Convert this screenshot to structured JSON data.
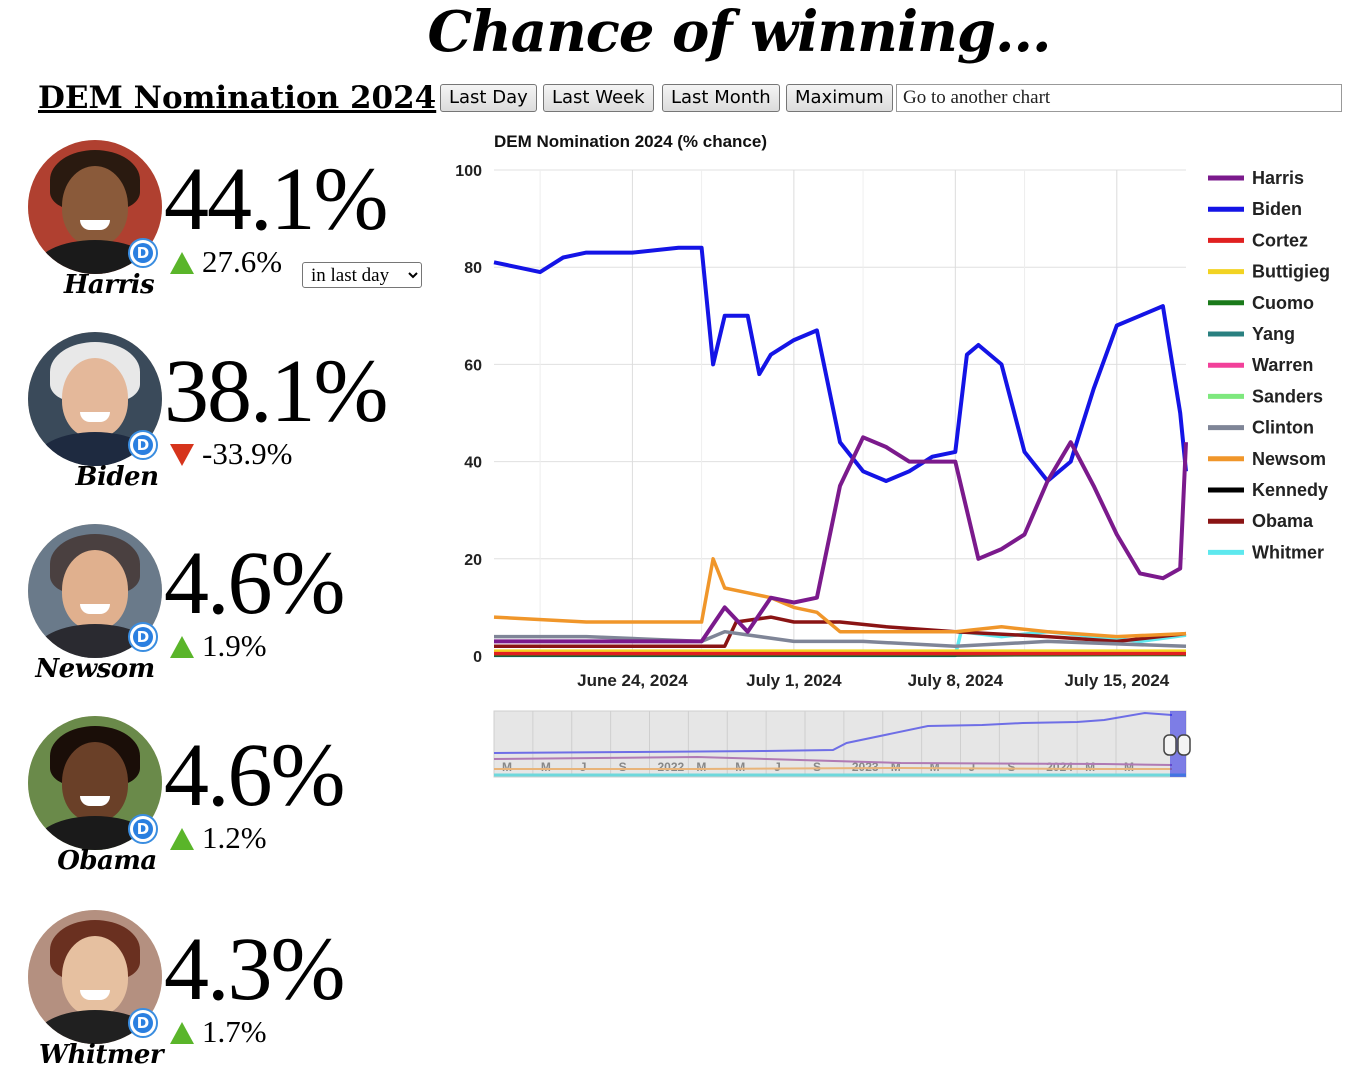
{
  "page": {
    "title": "Chance of winning...",
    "market_title": "DEM Nomination 2024"
  },
  "candidates": [
    {
      "name": "Harris",
      "pct": "44.1%",
      "change": "27.6%",
      "direction": "up",
      "party": "D",
      "photo": "harris-photo"
    },
    {
      "name": "Biden",
      "pct": "38.1%",
      "change": "-33.9%",
      "direction": "down",
      "party": "D",
      "photo": "biden-photo"
    },
    {
      "name": "Newsom",
      "pct": "4.6%",
      "change": "1.9%",
      "direction": "up",
      "party": "D",
      "photo": "newsom-photo"
    },
    {
      "name": "Obama",
      "pct": "4.6%",
      "change": "1.2%",
      "direction": "up",
      "party": "D",
      "photo": "obama-photo"
    },
    {
      "name": "Whitmer",
      "pct": "4.3%",
      "change": "1.7%",
      "direction": "up",
      "party": "D",
      "photo": "whitmer-photo"
    }
  ],
  "period_select": {
    "selected": "in last day"
  },
  "controls": {
    "buttons": [
      "Last Day",
      "Last Week",
      "Last Month",
      "Maximum"
    ],
    "goto_placeholder": "Go to another chart"
  },
  "colors": {
    "up_arrow": "#5ab52a",
    "down_arrow": "#d6341c",
    "party_badge": "#2a7fe0"
  },
  "chart_data": {
    "type": "line",
    "title": "DEM Nomination 2024 (% chance)",
    "ylim": [
      0,
      100
    ],
    "y_ticks": [
      0,
      20,
      40,
      60,
      80,
      100
    ],
    "x_ticks": [
      "June 24, 2024",
      "July 1, 2024",
      "July 8, 2024",
      "July 15, 2024"
    ],
    "x_start": "2024-06-18",
    "x_end": "2024-07-18",
    "grid": true,
    "legend_position": "right",
    "series": [
      {
        "name": "Harris",
        "color": "#7b1a8c",
        "points": [
          [
            "2024-06-18",
            3
          ],
          [
            "2024-06-27",
            3
          ],
          [
            "2024-06-28",
            10
          ],
          [
            "2024-06-29",
            5
          ],
          [
            "2024-06-30",
            12
          ],
          [
            "2024-07-01",
            11
          ],
          [
            "2024-07-02",
            12
          ],
          [
            "2024-07-03",
            35
          ],
          [
            "2024-07-04",
            45
          ],
          [
            "2024-07-05",
            43
          ],
          [
            "2024-07-06",
            40
          ],
          [
            "2024-07-07",
            40
          ],
          [
            "2024-07-08",
            40
          ],
          [
            "2024-07-09",
            20
          ],
          [
            "2024-07-10",
            22
          ],
          [
            "2024-07-11",
            25
          ],
          [
            "2024-07-12",
            36
          ],
          [
            "2024-07-13",
            44
          ],
          [
            "2024-07-14",
            35
          ],
          [
            "2024-07-15",
            25
          ],
          [
            "2024-07-16",
            17
          ],
          [
            "2024-07-17",
            16
          ],
          [
            "2024-07-17T18:00",
            18
          ],
          [
            "2024-07-18",
            44
          ]
        ]
      },
      {
        "name": "Biden",
        "color": "#1414e6",
        "points": [
          [
            "2024-06-18",
            81
          ],
          [
            "2024-06-19",
            80
          ],
          [
            "2024-06-20",
            79
          ],
          [
            "2024-06-21",
            82
          ],
          [
            "2024-06-22",
            83
          ],
          [
            "2024-06-24",
            83
          ],
          [
            "2024-06-26",
            84
          ],
          [
            "2024-06-27",
            84
          ],
          [
            "2024-06-27T12:00",
            60
          ],
          [
            "2024-06-28",
            70
          ],
          [
            "2024-06-29",
            70
          ],
          [
            "2024-06-29T12:00",
            58
          ],
          [
            "2024-06-30",
            62
          ],
          [
            "2024-07-01",
            65
          ],
          [
            "2024-07-02",
            67
          ],
          [
            "2024-07-03",
            44
          ],
          [
            "2024-07-04",
            38
          ],
          [
            "2024-07-05",
            36
          ],
          [
            "2024-07-06",
            38
          ],
          [
            "2024-07-07",
            41
          ],
          [
            "2024-07-08",
            42
          ],
          [
            "2024-07-08T12:00",
            62
          ],
          [
            "2024-07-09",
            64
          ],
          [
            "2024-07-10",
            60
          ],
          [
            "2024-07-11",
            42
          ],
          [
            "2024-07-12",
            36
          ],
          [
            "2024-07-13",
            40
          ],
          [
            "2024-07-14",
            55
          ],
          [
            "2024-07-15",
            68
          ],
          [
            "2024-07-16",
            70
          ],
          [
            "2024-07-17",
            72
          ],
          [
            "2024-07-17T18:00",
            50
          ],
          [
            "2024-07-18",
            38
          ]
        ]
      },
      {
        "name": "Cortez",
        "color": "#e02020",
        "points": [
          [
            "2024-06-18",
            0.5
          ],
          [
            "2024-07-18",
            0.5
          ]
        ]
      },
      {
        "name": "Buttigieg",
        "color": "#f2d322",
        "points": [
          [
            "2024-06-18",
            1
          ],
          [
            "2024-07-18",
            1
          ]
        ]
      },
      {
        "name": "Cuomo",
        "color": "#1a7a1a",
        "points": [
          [
            "2024-06-18",
            0.3
          ],
          [
            "2024-07-18",
            0.3
          ]
        ]
      },
      {
        "name": "Yang",
        "color": "#2a8080",
        "points": [
          [
            "2024-06-18",
            0.4
          ],
          [
            "2024-07-18",
            0.4
          ]
        ]
      },
      {
        "name": "Warren",
        "color": "#f2409a",
        "points": [
          [
            "2024-06-18",
            0.6
          ],
          [
            "2024-07-18",
            0.6
          ]
        ]
      },
      {
        "name": "Sanders",
        "color": "#7ee87e",
        "points": [
          [
            "2024-06-18",
            0.8
          ],
          [
            "2024-07-18",
            0.8
          ]
        ]
      },
      {
        "name": "Clinton",
        "color": "#7f8597",
        "points": [
          [
            "2024-06-18",
            4
          ],
          [
            "2024-06-22",
            4
          ],
          [
            "2024-06-27",
            3
          ],
          [
            "2024-06-28",
            5
          ],
          [
            "2024-07-01",
            3
          ],
          [
            "2024-07-04",
            3
          ],
          [
            "2024-07-08",
            2
          ],
          [
            "2024-07-12",
            3
          ],
          [
            "2024-07-18",
            2
          ]
        ]
      },
      {
        "name": "Newsom",
        "color": "#f0962a",
        "points": [
          [
            "2024-06-18",
            8
          ],
          [
            "2024-06-22",
            7
          ],
          [
            "2024-06-27",
            7
          ],
          [
            "2024-06-27T12:00",
            20
          ],
          [
            "2024-06-28",
            14
          ],
          [
            "2024-06-29",
            13
          ],
          [
            "2024-06-30",
            12
          ],
          [
            "2024-07-01",
            10
          ],
          [
            "2024-07-02",
            9
          ],
          [
            "2024-07-03",
            5
          ],
          [
            "2024-07-08",
            5
          ],
          [
            "2024-07-10",
            6
          ],
          [
            "2024-07-12",
            5
          ],
          [
            "2024-07-15",
            4
          ],
          [
            "2024-07-18",
            4.6
          ]
        ]
      },
      {
        "name": "Kennedy",
        "color": "#000000",
        "points": [
          [
            "2024-06-18",
            0.2
          ],
          [
            "2024-07-08",
            0.2
          ],
          [
            "2024-07-18",
            0.4
          ]
        ]
      },
      {
        "name": "Obama",
        "color": "#8a1414",
        "points": [
          [
            "2024-06-18",
            2
          ],
          [
            "2024-06-28",
            2
          ],
          [
            "2024-06-28T12:00",
            7
          ],
          [
            "2024-06-30",
            8
          ],
          [
            "2024-07-01",
            7
          ],
          [
            "2024-07-03",
            7
          ],
          [
            "2024-07-05",
            6
          ],
          [
            "2024-07-08",
            5
          ],
          [
            "2024-07-12",
            4
          ],
          [
            "2024-07-15",
            3
          ],
          [
            "2024-07-18",
            4.6
          ]
        ]
      },
      {
        "name": "Whitmer",
        "color": "#5ee8ee",
        "points": [
          [
            "2024-06-18",
            0.1
          ],
          [
            "2024-07-08",
            0.1
          ],
          [
            "2024-07-08T06:00",
            5
          ],
          [
            "2024-07-10",
            4
          ],
          [
            "2024-07-12",
            5
          ],
          [
            "2024-07-14",
            4
          ],
          [
            "2024-07-16",
            3
          ],
          [
            "2024-07-18",
            4.3
          ]
        ]
      }
    ],
    "navigator": {
      "labels": [
        "M",
        "M",
        "J",
        "S",
        "2022",
        "M",
        "M",
        "J",
        "S",
        "2023",
        "M",
        "M",
        "J",
        "S",
        "2024",
        "M",
        "M"
      ]
    }
  }
}
